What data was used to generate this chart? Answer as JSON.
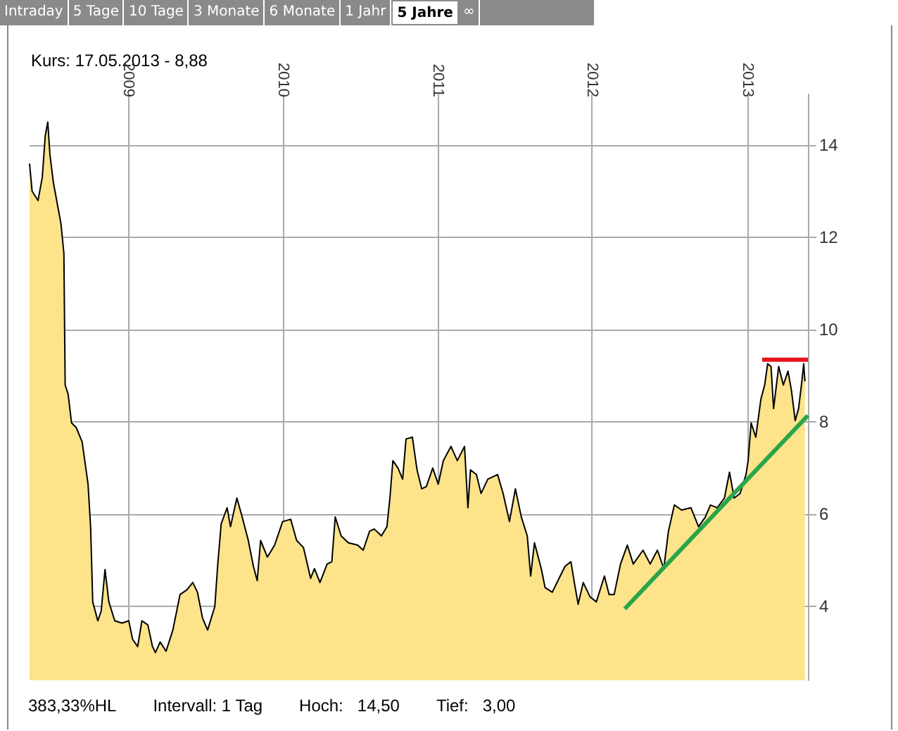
{
  "chart_data": {
    "type": "area",
    "title": "Kurs: 17.05.2013 - 8,88",
    "annotations": [
      "Intraday",
      "5 Tage",
      "10 Tage",
      "3 Monate",
      "6 Monate",
      "1 Jahr",
      "5 Jahre",
      "∞",
      "383,33%HL",
      "Intervall: 1 Tag",
      "Hoch:   14,50",
      "Tief:   3,00"
    ],
    "xlim": [
      "2008-05-14",
      "2013-05-24"
    ],
    "xticks": [
      "2009",
      "2010",
      "2011",
      "2012",
      "2013"
    ],
    "ylim": [
      2.4,
      15.1
    ],
    "yticks": [
      4,
      6,
      8,
      10,
      12,
      14
    ],
    "grid": true,
    "marker": "none",
    "line_style": "solid",
    "series": [
      {
        "color": "#fde38a",
        "x": [
          "2008-05-14",
          "2008-05-20",
          "2008-06-03",
          "2008-06-13",
          "2008-06-20",
          "2008-06-26",
          "2008-07-01",
          "2008-07-09",
          "2008-07-19",
          "2008-07-27",
          "2008-08-03",
          "2008-08-06",
          "2008-08-13",
          "2008-08-21",
          "2008-09-01",
          "2008-09-15",
          "2008-09-29",
          "2008-10-05",
          "2008-10-10",
          "2008-10-22",
          "2008-10-30",
          "2008-11-08",
          "2008-11-17",
          "2008-12-01",
          "2008-12-18",
          "2009-01-03",
          "2009-01-12",
          "2009-01-24",
          "2009-02-03",
          "2009-02-17",
          "2009-02-28",
          "2009-03-07",
          "2009-03-18",
          "2009-04-01",
          "2009-04-17",
          "2009-05-04",
          "2009-05-20",
          "2009-06-03",
          "2009-06-14",
          "2009-06-26",
          "2009-07-08",
          "2009-07-25",
          "2009-08-01",
          "2009-08-09",
          "2009-08-23",
          "2009-08-31",
          "2009-09-15",
          "2009-09-26",
          "2009-10-12",
          "2009-10-24",
          "2009-11-02",
          "2009-11-10",
          "2009-11-26",
          "2009-12-13",
          "2010-01-01",
          "2010-01-20",
          "2010-02-03",
          "2010-02-19",
          "2010-03-08",
          "2010-03-17",
          "2010-03-30",
          "2010-04-16",
          "2010-04-27",
          "2010-05-05",
          "2010-05-19",
          "2010-06-05",
          "2010-06-27",
          "2010-07-10",
          "2010-07-25",
          "2010-08-05",
          "2010-08-22",
          "2010-09-04",
          "2010-09-11",
          "2010-09-18",
          "2010-09-30",
          "2010-10-11",
          "2010-10-19",
          "2010-11-03",
          "2010-11-14",
          "2010-11-25",
          "2010-12-06",
          "2010-12-21",
          "2011-01-03",
          "2011-01-15",
          "2011-02-02",
          "2011-02-17",
          "2011-03-06",
          "2011-03-14",
          "2011-03-20",
          "2011-04-03",
          "2011-04-14",
          "2011-04-30",
          "2011-05-23",
          "2011-06-05",
          "2011-06-20",
          "2011-07-04",
          "2011-07-18",
          "2011-08-01",
          "2011-08-09",
          "2011-08-18",
          "2011-09-03",
          "2011-09-12",
          "2011-09-29",
          "2011-10-15",
          "2011-10-29",
          "2011-11-12",
          "2011-11-20",
          "2011-11-29",
          "2011-12-11",
          "2011-12-27",
          "2012-01-11",
          "2012-01-30",
          "2012-02-10",
          "2012-02-22",
          "2012-03-08",
          "2012-03-24",
          "2012-04-07",
          "2012-04-30",
          "2012-05-17",
          "2012-06-03",
          "2012-06-18",
          "2012-06-29",
          "2012-07-13",
          "2012-07-30",
          "2012-08-21",
          "2012-09-08",
          "2012-09-24",
          "2012-10-06",
          "2012-10-22",
          "2012-11-08",
          "2012-11-20",
          "2012-12-01",
          "2012-12-15",
          "2012-12-29",
          "2013-01-03",
          "2013-01-10",
          "2013-01-21",
          "2013-02-02",
          "2013-02-11",
          "2013-02-18",
          "2013-02-26",
          "2013-03-04",
          "2013-03-16",
          "2013-03-27",
          "2013-04-07",
          "2013-04-15",
          "2013-04-24",
          "2013-05-02",
          "2013-05-10",
          "2013-05-14",
          "2013-05-17"
        ],
        "values": [
          13.6,
          13.0,
          12.8,
          13.3,
          14.2,
          14.5,
          13.8,
          13.2,
          12.7,
          12.3,
          11.65,
          8.8,
          8.6,
          7.98,
          7.88,
          7.57,
          6.65,
          5.73,
          4.1,
          3.69,
          3.9,
          4.8,
          4.1,
          3.69,
          3.64,
          3.69,
          3.29,
          3.13,
          3.69,
          3.6,
          3.13,
          3.0,
          3.23,
          3.03,
          3.49,
          4.26,
          4.36,
          4.52,
          4.31,
          3.75,
          3.49,
          4.0,
          4.92,
          5.79,
          6.14,
          5.73,
          6.35,
          5.99,
          5.43,
          4.87,
          4.56,
          5.43,
          5.07,
          5.33,
          5.84,
          5.89,
          5.43,
          5.28,
          4.61,
          4.82,
          4.52,
          4.92,
          4.97,
          5.94,
          5.53,
          5.38,
          5.33,
          5.22,
          5.63,
          5.68,
          5.53,
          5.73,
          6.35,
          7.16,
          7.0,
          6.76,
          7.63,
          7.67,
          6.96,
          6.55,
          6.6,
          7.0,
          6.65,
          7.16,
          7.47,
          7.16,
          7.47,
          6.14,
          6.96,
          6.86,
          6.45,
          6.76,
          6.86,
          6.45,
          5.84,
          6.55,
          5.94,
          5.53,
          4.66,
          5.38,
          4.82,
          4.41,
          4.31,
          4.61,
          4.87,
          4.97,
          4.52,
          4.05,
          4.52,
          4.21,
          4.1,
          4.66,
          4.26,
          4.26,
          4.92,
          5.33,
          4.92,
          5.22,
          4.92,
          5.22,
          4.82,
          5.63,
          6.2,
          6.09,
          6.14,
          5.73,
          5.94,
          6.2,
          6.14,
          6.35,
          6.91,
          6.35,
          6.45,
          6.86,
          7.16,
          7.98,
          7.67,
          8.49,
          8.8,
          9.26,
          9.2,
          8.29,
          9.2,
          8.8,
          9.1,
          8.69,
          8.03,
          8.29,
          8.9,
          9.26,
          8.88
        ]
      },
      {
        "type": "line",
        "color": "#e8141c",
        "x": [
          "2013-02-05",
          "2013-05-24"
        ],
        "values": [
          9.35,
          9.35
        ]
      },
      {
        "type": "line",
        "color": "#2aa54a",
        "x": [
          "2012-03-18",
          "2013-05-24"
        ],
        "values": [
          3.95,
          8.14
        ]
      }
    ]
  }
}
